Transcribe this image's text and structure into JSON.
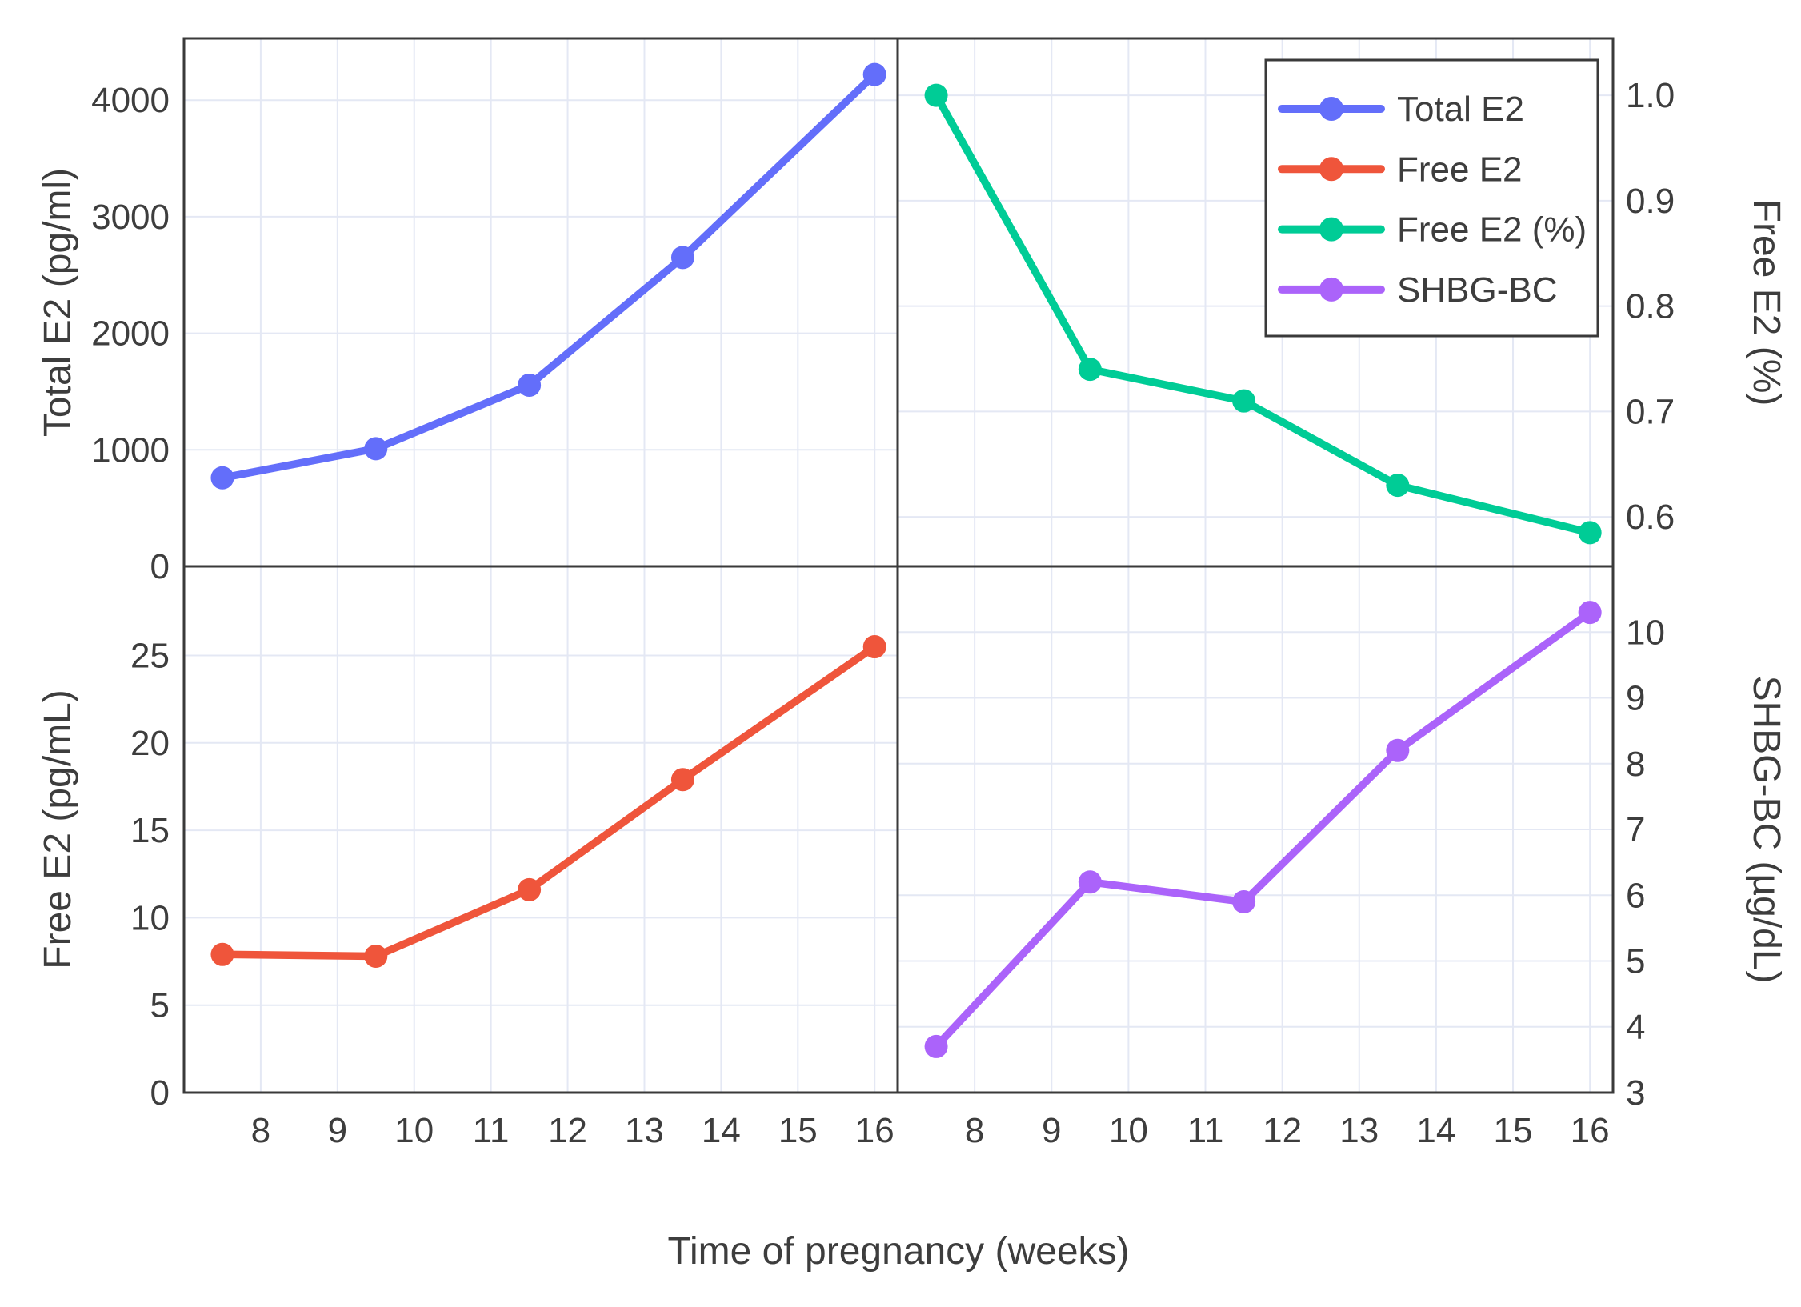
{
  "figure": {
    "background": "#ffffff",
    "text_color": "#3d3d3d",
    "axis_color": "#3a3a3a",
    "grid_color": "#e4e8f4"
  },
  "chart_data": {
    "type": "line",
    "layout": "2x2 panels, shared x-axis, grid on",
    "xlabel": "Time of pregnancy (weeks)",
    "x": [
      7.5,
      9.5,
      11.5,
      13.5,
      16
    ],
    "x_ticks": [
      8,
      9,
      10,
      11,
      12,
      13,
      14,
      15,
      16
    ],
    "x_tick_labels": [
      "8",
      "9",
      "10",
      "11",
      "12",
      "13",
      "14",
      "15",
      "16"
    ],
    "xlim": [
      7.0,
      16.3
    ],
    "legend": {
      "position": "inside top-right panel, boxed",
      "entries": [
        {
          "label": "Total E2",
          "color": "#636EFA"
        },
        {
          "label": "Free E2",
          "color": "#EF553B"
        },
        {
          "label": "Free E2 (%)",
          "color": "#00CC96"
        },
        {
          "label": "SHBG-BC",
          "color": "#AB63FA"
        }
      ]
    },
    "panels": [
      {
        "position": "top-left",
        "series": "Total E2",
        "ylabel": "Total E2 (pg/ml)",
        "ylabel_side": "left",
        "color": "#636EFA",
        "values": [
          760,
          1010,
          1555,
          2650,
          4220
        ],
        "yticks": [
          0,
          1000,
          2000,
          3000,
          4000
        ],
        "ytick_labels": [
          "0",
          "1000",
          "2000",
          "3000",
          "4000"
        ],
        "ylim": [
          0,
          4530
        ]
      },
      {
        "position": "top-right",
        "series": "Free E2 (%)",
        "ylabel": "Free E2 (%)",
        "ylabel_side": "right",
        "color": "#00CC96",
        "values": [
          1.0,
          0.74,
          0.71,
          0.63,
          0.585
        ],
        "yticks": [
          0.6,
          0.7,
          0.8,
          0.9,
          1.0
        ],
        "ytick_labels": [
          "0.6",
          "0.7",
          "0.8",
          "0.9",
          "1.0"
        ],
        "ylim": [
          0.553,
          1.054
        ]
      },
      {
        "position": "bottom-left",
        "series": "Free E2",
        "ylabel": "Free E2 (pg/mL)",
        "ylabel_side": "left",
        "color": "#EF553B",
        "values": [
          7.9,
          7.8,
          11.6,
          17.9,
          25.5
        ],
        "yticks": [
          0,
          5,
          10,
          15,
          20,
          25
        ],
        "ytick_labels": [
          "0",
          "5",
          "10",
          "15",
          "20",
          "25"
        ],
        "ylim": [
          0,
          30.1
        ]
      },
      {
        "position": "bottom-right",
        "series": "SHBG-BC",
        "ylabel": "SHBG-BC (µg/dL)",
        "ylabel_side": "right",
        "color": "#AB63FA",
        "values": [
          3.7,
          6.2,
          5.9,
          8.2,
          10.3
        ],
        "yticks": [
          3,
          4,
          5,
          6,
          7,
          8,
          9,
          10
        ],
        "ytick_labels": [
          "3",
          "4",
          "5",
          "6",
          "7",
          "8",
          "9",
          "10"
        ],
        "ylim": [
          3,
          11.0
        ]
      }
    ]
  }
}
